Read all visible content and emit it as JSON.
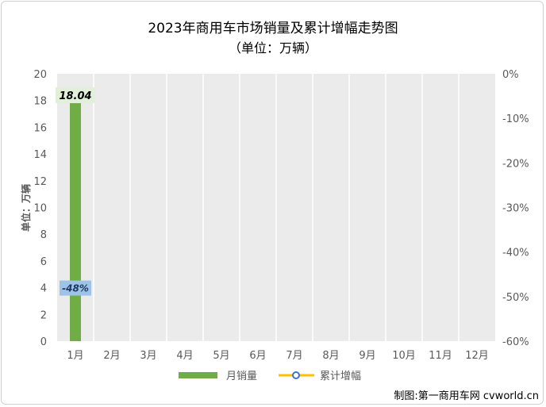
{
  "chart_data": {
    "type": "bar",
    "title": "2023年商用车市场销量及累计增幅走势图",
    "subtitle": "（单位：万辆）",
    "ylabel": "单位：万辆",
    "categories": [
      "1月",
      "2月",
      "3月",
      "4月",
      "5月",
      "6月",
      "7月",
      "8月",
      "9月",
      "10月",
      "11月",
      "12月"
    ],
    "series": [
      {
        "name": "月销量",
        "axis": "left",
        "kind": "bar",
        "color": "#70ad47",
        "values": [
          18.04,
          null,
          null,
          null,
          null,
          null,
          null,
          null,
          null,
          null,
          null,
          null
        ],
        "labels": [
          "18.04",
          "",
          "",
          "",
          "",
          "",
          "",
          "",
          "",
          "",
          "",
          ""
        ]
      },
      {
        "name": "累计增幅",
        "axis": "right",
        "kind": "line",
        "color": "#ffc000",
        "marker_color": "#4472c4",
        "values": [
          -48,
          null,
          null,
          null,
          null,
          null,
          null,
          null,
          null,
          null,
          null,
          null
        ],
        "labels": [
          "-48%",
          "",
          "",
          "",
          "",
          "",
          "",
          "",
          "",
          "",
          "",
          ""
        ]
      }
    ],
    "ylim": [
      0,
      20
    ],
    "yticks": [
      "0",
      "2",
      "4",
      "6",
      "8",
      "10",
      "12",
      "14",
      "16",
      "18",
      "20"
    ],
    "y2lim": [
      -60,
      0
    ],
    "y2ticks": [
      "0%",
      "-10%",
      "-20%",
      "-30%",
      "-40%",
      "-50%",
      "-60%"
    ],
    "grid": true,
    "legend_position": "bottom"
  },
  "footer": {
    "credit": "制图:第一商用车网 cvworld.cn"
  },
  "colors": {
    "plot_bg": "#ebebeb",
    "grid": "#ffffff",
    "axis_text": "#595959",
    "bar_label_bg": "#e2efda",
    "line_label_bg": "#9dc3e6"
  }
}
